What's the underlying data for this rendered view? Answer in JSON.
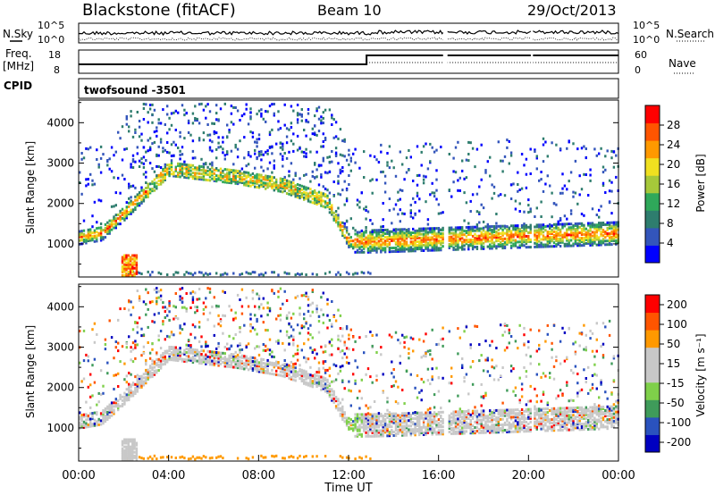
{
  "header": {
    "station": "Blackstone (fitACF)",
    "beam": "Beam 10",
    "date": "29/Oct/2013"
  },
  "top_panels": {
    "nsky_label": "N.Sky",
    "nsky_tick_top": "10^5",
    "nsky_tick_bottom": "10^0",
    "nsearch_label": "N.Search",
    "nsearch_tick_top": "10^5",
    "nsearch_tick_bottom": "10^0",
    "freq_label": "Freq.",
    "freq_unit": "[MHz]",
    "freq_tick_top": "18",
    "freq_tick_bottom": "8",
    "nave_label": "Nave",
    "nave_tick_top": "60",
    "nave_tick_bottom": "0",
    "cpid_label": "CPID",
    "cpid_value": "twofsound  -3501"
  },
  "colors": {
    "power_scale": [
      "#0000ff",
      "#3355bb",
      "#2e7d6e",
      "#2fa85a",
      "#a6c83a",
      "#f0e020",
      "#ff9900",
      "#ff5500",
      "#ff0000"
    ],
    "velocity_scale": [
      "#0000c0",
      "#2a52be",
      "#3f9b5a",
      "#7fd04a",
      "#c8c8c8",
      "#c8c8c8",
      "#ff9900",
      "#ff5500",
      "#ff0000"
    ]
  },
  "chart_data": [
    {
      "type": "heatmap",
      "name": "power",
      "ylabel": "Slant Range [km]",
      "yticks": [
        1000,
        2000,
        3000,
        4000
      ],
      "ylim": [
        180,
        4560
      ],
      "xlim": [
        0,
        24
      ],
      "colorbar_label": "Power [dB]",
      "colorbar_ticks": [
        4,
        8,
        12,
        16,
        20,
        24,
        28
      ],
      "colorbar_range": [
        0,
        32
      ],
      "features": {
        "main_echo_band_km": [
          [
            0,
            1200
          ],
          [
            1,
            1300
          ],
          [
            2,
            1800
          ],
          [
            4,
            2900
          ],
          [
            7,
            2700
          ],
          [
            9,
            2500
          ],
          [
            11,
            2100
          ],
          [
            12,
            1100
          ],
          [
            13,
            1100
          ],
          [
            24,
            1300
          ]
        ],
        "data_gaps_hours": [
          [
            16.2,
            16.4
          ],
          [
            20.1,
            20.2
          ]
        ]
      }
    },
    {
      "type": "heatmap",
      "name": "velocity",
      "ylabel": "Slant Range [km]",
      "yticks": [
        1000,
        2000,
        3000,
        4000
      ],
      "ylim": [
        180,
        4560
      ],
      "xlim": [
        0,
        24
      ],
      "xticks": [
        "00:00",
        "04:00",
        "08:00",
        "12:00",
        "16:00",
        "20:00",
        "00:00"
      ],
      "xlabel": "Time UT",
      "colorbar_label": "Velocity [m s⁻¹]",
      "colorbar_ticks": [
        200,
        100,
        50,
        15,
        -15,
        -50,
        -100,
        -200
      ],
      "colorbar_range": [
        -250,
        250
      ]
    }
  ]
}
